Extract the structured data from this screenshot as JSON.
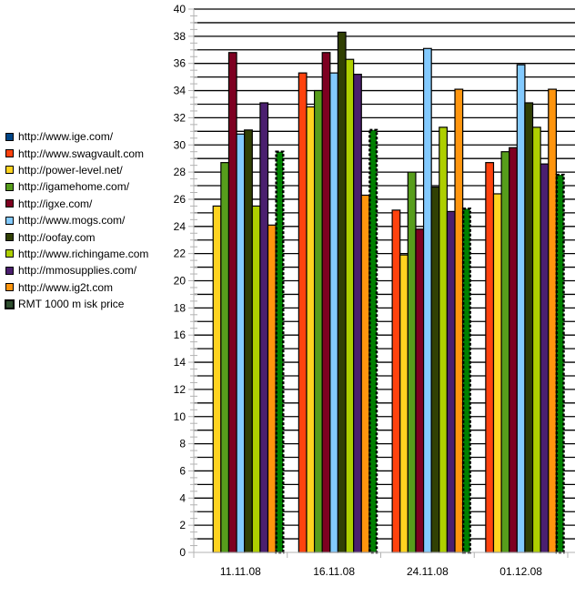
{
  "chart_data": {
    "type": "bar",
    "title": "",
    "xlabel": "",
    "ylabel": "",
    "ylim": [
      0,
      40
    ],
    "y_major_step": 2,
    "y_grid_step": 1,
    "grid": true,
    "legend_position": "left",
    "categories": [
      "11.11.08",
      "16.11.08",
      "24.11.08",
      "01.12.08"
    ],
    "series": [
      {
        "name": "http://www.ige.com/",
        "color": "#004586",
        "values": [
          null,
          null,
          null,
          null
        ]
      },
      {
        "name": "http://www.swagvault.com",
        "color": "#ff420e",
        "values": [
          null,
          35.3,
          25.2,
          28.7
        ]
      },
      {
        "name": "http://power-level.net/",
        "color": "#ffd320",
        "values": [
          25.5,
          32.8,
          21.9,
          26.4
        ]
      },
      {
        "name": "http://igamehome.com/",
        "color": "#579d1c",
        "values": [
          28.7,
          34.0,
          28.0,
          29.5
        ]
      },
      {
        "name": "http://igxe.com/",
        "color": "#7e0021",
        "values": [
          36.8,
          36.8,
          23.8,
          29.8
        ]
      },
      {
        "name": "http://www.mogs.com/",
        "color": "#83caff",
        "values": [
          30.8,
          35.3,
          37.1,
          35.9
        ]
      },
      {
        "name": "http://oofay.com",
        "color": "#314004",
        "values": [
          31.1,
          38.3,
          26.9,
          33.1
        ]
      },
      {
        "name": "http://www.richingame.com",
        "color": "#aecf00",
        "values": [
          25.5,
          36.3,
          31.3,
          31.3
        ]
      },
      {
        "name": "http://mmosupplies.com/",
        "color": "#4b1f6f",
        "values": [
          33.1,
          35.2,
          25.1,
          28.6
        ]
      },
      {
        "name": "http://www.ig2t.com",
        "color": "#ff950e",
        "values": [
          24.1,
          26.3,
          34.1,
          34.1
        ]
      },
      {
        "name": "RMT 1000 m isk  price",
        "color": "#008000",
        "dotted": true,
        "values": [
          29.5,
          31.1,
          25.3,
          27.8
        ]
      }
    ]
  }
}
